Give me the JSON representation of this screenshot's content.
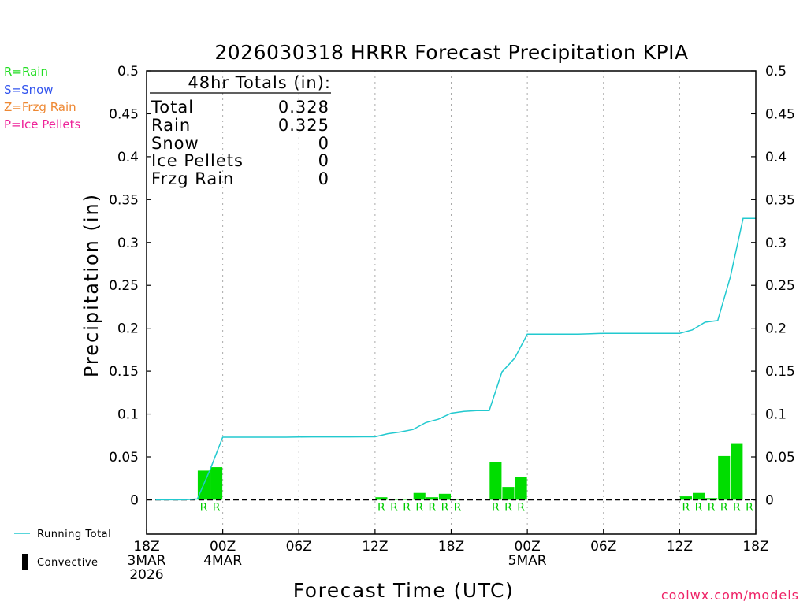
{
  "title": "2026030318 HRRR Forecast Precipitation KPIA",
  "chart_data": {
    "type": "bar",
    "title": "2026030318 HRRR Forecast Precipitation KPIA",
    "xlabel": "Forecast Time (UTC)",
    "ylabel": "Precipitation (in)",
    "ylim": [
      -0.04,
      0.5
    ],
    "xlim": [
      0,
      48
    ],
    "grid": "vertical dotted at 6-hour intervals",
    "y_ticks": [
      "0.5",
      "0.45",
      "0.4",
      "0.35",
      "0.3",
      "0.25",
      "0.2",
      "0.15",
      "0.1",
      "0.05",
      "0"
    ],
    "y_tick_values": [
      0.5,
      0.45,
      0.4,
      0.35,
      0.3,
      0.25,
      0.2,
      0.15,
      0.1,
      0.05,
      0
    ],
    "x_ticks": [
      {
        "hour": 0,
        "lines": [
          "18Z",
          "3MAR",
          "2026"
        ]
      },
      {
        "hour": 6,
        "lines": [
          "00Z",
          "4MAR"
        ]
      },
      {
        "hour": 12,
        "lines": [
          "06Z"
        ]
      },
      {
        "hour": 18,
        "lines": [
          "12Z"
        ]
      },
      {
        "hour": 24,
        "lines": [
          "18Z"
        ]
      },
      {
        "hour": 30,
        "lines": [
          "00Z",
          "5MAR"
        ]
      },
      {
        "hour": 36,
        "lines": [
          "06Z"
        ]
      },
      {
        "hour": 42,
        "lines": [
          "12Z"
        ]
      },
      {
        "hour": 48,
        "lines": [
          "18Z"
        ]
      }
    ],
    "bars_hourly": [
      {
        "hour": 5,
        "value": 0.034,
        "type": "R"
      },
      {
        "hour": 6,
        "value": 0.038,
        "type": "R"
      },
      {
        "hour": 19,
        "value": 0.003,
        "type": "R"
      },
      {
        "hour": 20,
        "value": 0.001,
        "type": "R"
      },
      {
        "hour": 21,
        "value": 0.001,
        "type": "R"
      },
      {
        "hour": 22,
        "value": 0.008,
        "type": "R"
      },
      {
        "hour": 23,
        "value": 0.003,
        "type": "R"
      },
      {
        "hour": 24,
        "value": 0.007,
        "type": "R"
      },
      {
        "hour": 25,
        "value": 0.001,
        "type": "R"
      },
      {
        "hour": 28,
        "value": 0.044,
        "type": "R"
      },
      {
        "hour": 29,
        "value": 0.015,
        "type": "R"
      },
      {
        "hour": 30,
        "value": 0.027,
        "type": "R"
      },
      {
        "hour": 43,
        "value": 0.004,
        "type": "R"
      },
      {
        "hour": 44,
        "value": 0.008,
        "type": "R"
      },
      {
        "hour": 45,
        "value": 0.002,
        "type": "R"
      },
      {
        "hour": 46,
        "value": 0.051,
        "type": "R"
      },
      {
        "hour": 47,
        "value": 0.066,
        "type": "R"
      },
      {
        "hour": 48,
        "value": 0.0,
        "type": "R"
      }
    ],
    "running_total": {
      "hours": [
        0,
        1,
        2,
        3,
        4,
        5,
        6,
        7,
        8,
        9,
        10,
        11,
        12,
        13,
        14,
        15,
        16,
        17,
        18,
        19,
        20,
        21,
        22,
        23,
        24,
        25,
        26,
        27,
        28,
        29,
        30,
        31,
        32,
        33,
        34,
        35,
        36,
        37,
        38,
        39,
        40,
        41,
        42,
        43,
        44,
        45,
        46,
        47,
        48
      ],
      "values": [
        0,
        0,
        0,
        0,
        0.001,
        0.035,
        0.073,
        0.073,
        0.073,
        0.073,
        0.073,
        0.073,
        0.0732,
        0.0733,
        0.0733,
        0.0733,
        0.0733,
        0.0734,
        0.0734,
        0.077,
        0.079,
        0.082,
        0.09,
        0.094,
        0.101,
        0.103,
        0.104,
        0.104,
        0.149,
        0.165,
        0.193,
        0.193,
        0.193,
        0.193,
        0.193,
        0.1935,
        0.194,
        0.194,
        0.194,
        0.194,
        0.194,
        0.194,
        0.194,
        0.198,
        0.207,
        0.209,
        0.26,
        0.328,
        0.328
      ]
    },
    "zero_line": "dashed"
  },
  "totals_box": {
    "heading": "48hr Totals (in):",
    "rows": [
      {
        "label": "Total",
        "value": "0.328"
      },
      {
        "label": "Rain",
        "value": "0.325"
      },
      {
        "label": "Snow",
        "value": "0"
      },
      {
        "label": "Ice Pellets",
        "value": "0"
      },
      {
        "label": "Frzg Rain",
        "value": "0"
      }
    ]
  },
  "type_legend": [
    {
      "text": "R=Rain",
      "color": "#22dd22"
    },
    {
      "text": "S=Snow",
      "color": "#3355ee"
    },
    {
      "text": "Z=Frzg Rain",
      "color": "#ee8833"
    },
    {
      "text": "P=Ice Pellets",
      "color": "#ee2299"
    }
  ],
  "bottom_legend": {
    "running_total": "Running Total",
    "convective": "Convective"
  },
  "credit": "coolwx.com/models",
  "colors": {
    "bar": "#00dd00",
    "running_total": "#22c9cf",
    "rain_marker": "#00cc00",
    "credit": "#ee2266",
    "axis": "#000000"
  }
}
